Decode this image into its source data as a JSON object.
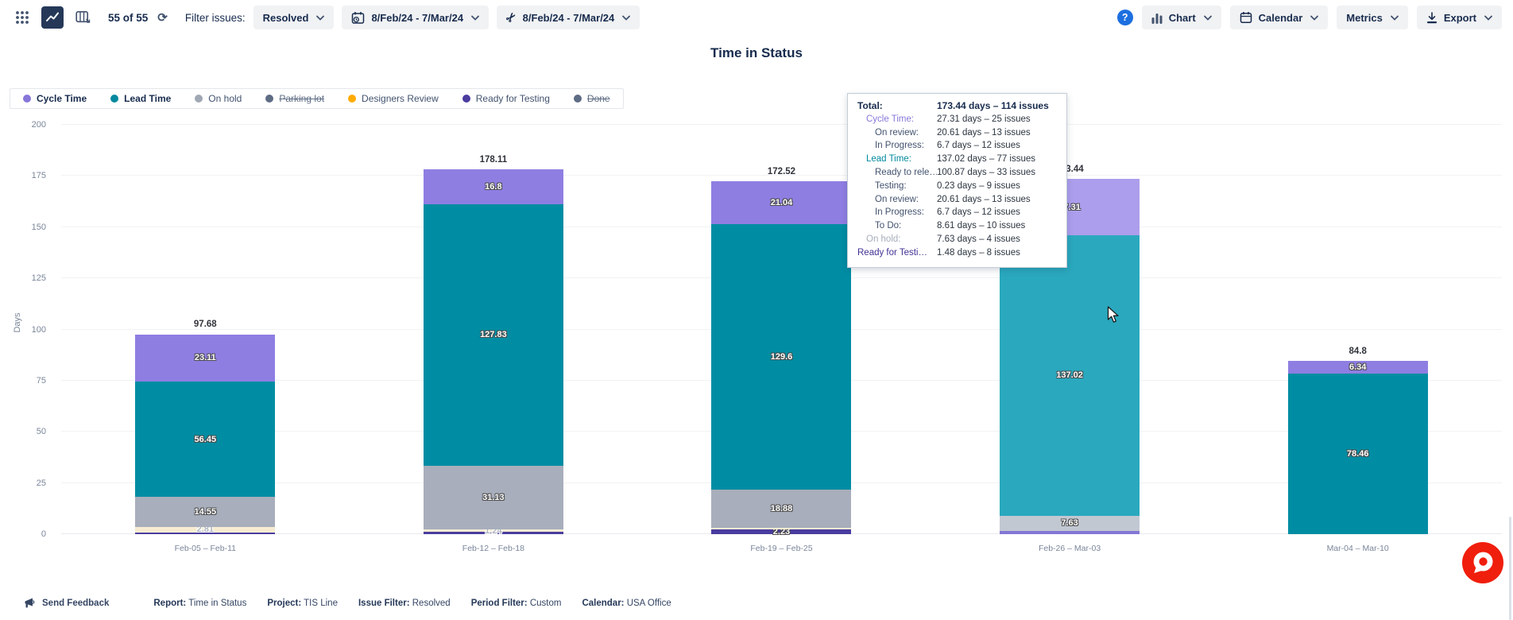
{
  "toolbar": {
    "issues_count": "55 of 55",
    "refresh_glyph": "⟳",
    "filter_label": "Filter issues:",
    "filter_value": "Resolved",
    "period_range": "8/Feb/24 - 7/Mar/24",
    "trim_range": "8/Feb/24 - 7/Mar/24",
    "help_glyph": "?",
    "chart_label": "Chart",
    "calendar_label": "Calendar",
    "metrics_label": "Metrics",
    "export_label": "Export",
    "scissors_glyph": "✂"
  },
  "title": "Time in Status",
  "legend": [
    {
      "label": "Cycle Time",
      "color": "#8777D9",
      "bold": true
    },
    {
      "label": "Lead Time",
      "color": "#00899E",
      "bold": true
    },
    {
      "label": "On hold",
      "color": "#A0A8B4"
    },
    {
      "label": "Parking lot",
      "color": "#5E6C84",
      "struck": true
    },
    {
      "label": "Designers Review",
      "color": "#FFAB00"
    },
    {
      "label": "Ready for Testing",
      "color": "#4A3C9F"
    },
    {
      "label": "Done",
      "color": "#5E6C84",
      "struck": true
    }
  ],
  "chart_data": {
    "type": "bar",
    "stacked": true,
    "title": "Time in Status",
    "xlabel": "",
    "ylabel": "Days",
    "ylim": [
      0,
      200
    ],
    "yticks": [
      0,
      25,
      50,
      75,
      100,
      125,
      150,
      175,
      200
    ],
    "grid": true,
    "legend_position": "top-left",
    "hovered_bar": "Feb-26 – Mar-03",
    "categories": [
      "Feb-05 – Feb-11",
      "Feb-12 – Feb-18",
      "Feb-19 – Feb-25",
      "Feb-26 – Mar-03",
      "Mar-04 – Mar-10"
    ],
    "bars": [
      {
        "category": "Feb-05 – Feb-11",
        "total": 97.68,
        "total_label": "97.68",
        "segments": [
          {
            "name": "ready-for-testing",
            "value": 0.76,
            "color": "#4A3C9F"
          },
          {
            "name": "designers-review",
            "value": 2.81,
            "color": "#F7ECD2",
            "label": "2.81",
            "muted": true
          },
          {
            "name": "on-hold",
            "value": 14.55,
            "color": "#A8AEBB",
            "label": "14.55"
          },
          {
            "name": "lead-time",
            "value": 56.45,
            "color": "#008DA3",
            "label": "56.45"
          },
          {
            "name": "cycle-time",
            "value": 23.11,
            "color": "#8F7EE2",
            "label": "23.11"
          }
        ]
      },
      {
        "category": "Feb-12 – Feb-18",
        "total": 178.11,
        "total_label": "178.11",
        "segments": [
          {
            "name": "ready-for-testing",
            "value": 1.11,
            "color": "#4A3C9F"
          },
          {
            "name": "designers-review",
            "value": 1.24,
            "color": "#F7ECD2",
            "label": "1.24",
            "muted": true
          },
          {
            "name": "on-hold",
            "value": 31.13,
            "color": "#A8AEBB",
            "label": "31.13"
          },
          {
            "name": "lead-time",
            "value": 127.83,
            "color": "#008DA3",
            "label": "127.83"
          },
          {
            "name": "cycle-time",
            "value": 16.8,
            "color": "#8F7EE2",
            "label": "16.8"
          }
        ]
      },
      {
        "category": "Feb-19 – Feb-25",
        "total": 172.52,
        "total_label": "172.52",
        "segments": [
          {
            "name": "ready-for-testing",
            "value": 2.23,
            "color": "#4A3C9F",
            "label": "2.23"
          },
          {
            "name": "designers-review",
            "value": 0.77,
            "color": "#F7ECD2"
          },
          {
            "name": "on-hold",
            "value": 18.88,
            "color": "#A8AEBB",
            "label": "18.88"
          },
          {
            "name": "lead-time",
            "value": 129.6,
            "color": "#008DA3",
            "label": "129.6"
          },
          {
            "name": "cycle-time",
            "value": 21.04,
            "color": "#8F7EE2",
            "label": "21.04"
          }
        ]
      },
      {
        "category": "Feb-26 – Mar-03",
        "total": 173.44,
        "total_label": "173.44",
        "hovered": true,
        "segments": [
          {
            "name": "ready-for-testing",
            "value": 1.48,
            "color": "#8477D4"
          },
          {
            "name": "on-hold",
            "value": 7.63,
            "color": "#C2C8D2",
            "label": "7.63"
          },
          {
            "name": "lead-time",
            "value": 137.02,
            "color": "#2AA8BE",
            "label": "137.02"
          },
          {
            "name": "cycle-time",
            "value": 27.31,
            "color": "#AC9EEC",
            "label": "27.31"
          }
        ]
      },
      {
        "category": "Mar-04 – Mar-10",
        "total": 84.8,
        "total_label": "84.8",
        "segments": [
          {
            "name": "lead-time",
            "value": 78.46,
            "color": "#008DA3",
            "label": "78.46"
          },
          {
            "name": "cycle-time",
            "value": 6.34,
            "color": "#8F7EE2",
            "label": "6.34"
          }
        ]
      }
    ]
  },
  "tooltip": {
    "rows": [
      {
        "label": "Total:",
        "value": "173.44 days – 114 issues",
        "indent": 0,
        "bold": true
      },
      {
        "label": "Cycle Time:",
        "value": "27.31 days – 25 issues",
        "indent": 1,
        "color": "#8777D9"
      },
      {
        "label": "On review:",
        "value": "20.61 days – 13 issues",
        "indent": 2
      },
      {
        "label": "In Progress:",
        "value": "6.7 days – 12 issues",
        "indent": 2
      },
      {
        "label": "Lead Time:",
        "value": "137.02 days – 77 issues",
        "indent": 1,
        "color": "#00899E"
      },
      {
        "label": "Ready to rele…",
        "value": "100.87 days – 33 issues",
        "indent": 2
      },
      {
        "label": "Testing:",
        "value": "0.23 days – 9 issues",
        "indent": 2
      },
      {
        "label": "On review:",
        "value": "20.61 days – 13 issues",
        "indent": 2
      },
      {
        "label": "In Progress:",
        "value": "6.7 days – 12 issues",
        "indent": 2
      },
      {
        "label": "To Do:",
        "value": "8.61 days – 10 issues",
        "indent": 2
      },
      {
        "label": "On hold:",
        "value": "7.63 days – 4 issues",
        "indent": 1,
        "color": "#A5ADBA"
      },
      {
        "label": "Ready for Testi…",
        "value": "1.48 days – 8 issues",
        "indent": 0,
        "color": "#403294"
      }
    ]
  },
  "footer": {
    "send_feedback": "Send Feedback",
    "meta": [
      {
        "label": "Report:",
        "value": "Time in Status"
      },
      {
        "label": "Project:",
        "value": "TIS Line"
      },
      {
        "label": "Issue Filter:",
        "value": "Resolved"
      },
      {
        "label": "Period Filter:",
        "value": "Custom"
      },
      {
        "label": "Calendar:",
        "value": "USA Office"
      }
    ]
  }
}
